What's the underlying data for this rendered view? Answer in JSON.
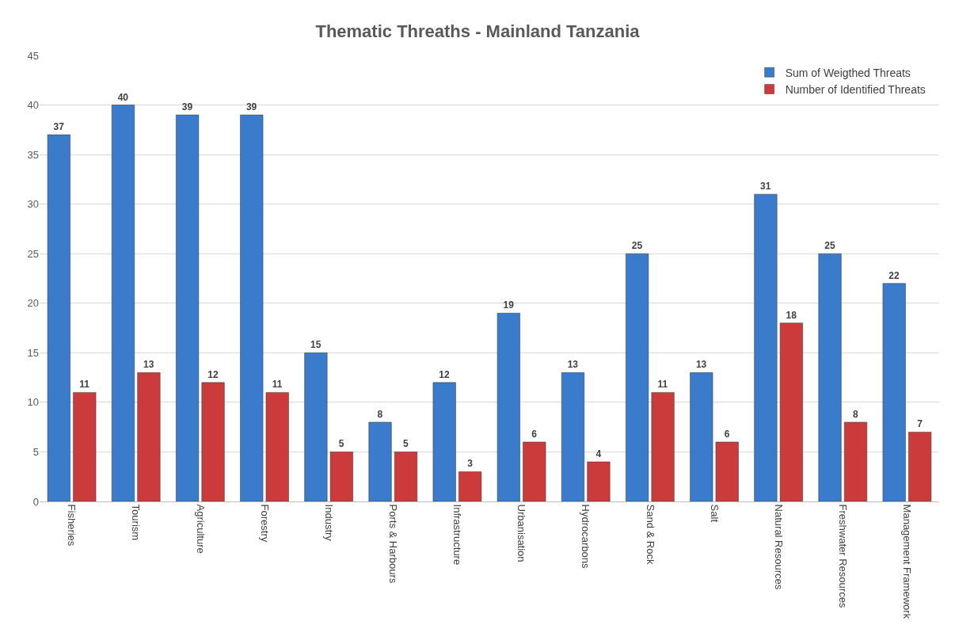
{
  "chart_data": {
    "type": "bar",
    "title": "Thematic Threaths - Mainland Tanzania",
    "categories": [
      "Fisheries",
      "Tourism",
      "Agriculture",
      "Forestry",
      "Industry",
      "Ports & Harbours",
      "Infrastructure",
      "Urbanisation",
      "Hydrocarbons",
      "Sand & Rock",
      "Salt",
      "Natural Resources",
      "Freshwater Resources",
      "Management Framework"
    ],
    "series": [
      {
        "name": "Sum of Weigthed Threats",
        "color": "#3b7bcb",
        "values": [
          37,
          40,
          39,
          39,
          15,
          8,
          12,
          19,
          13,
          25,
          13,
          31,
          25,
          22
        ]
      },
      {
        "name": "Number of Identified Threats",
        "color": "#cc3b3b",
        "values": [
          11,
          13,
          12,
          11,
          5,
          5,
          3,
          6,
          4,
          11,
          6,
          18,
          8,
          7
        ]
      }
    ],
    "ylim": [
      0,
      45
    ],
    "yticks": [
      0,
      5,
      10,
      15,
      20,
      25,
      30,
      35,
      40,
      45
    ],
    "grid": "y",
    "legend": "top right",
    "data_labels": true
  }
}
